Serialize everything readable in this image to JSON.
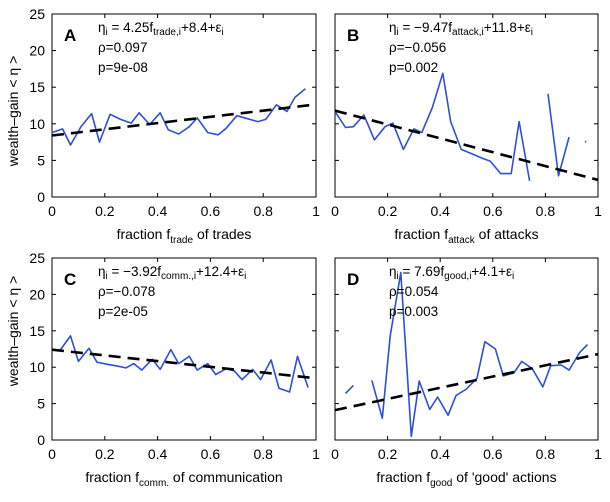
{
  "figure": {
    "ylabel": "wealth–gain < η >"
  },
  "colors": {
    "series": "#2f4fd8",
    "fit": "#000000"
  },
  "chart_data": [
    {
      "type": "line",
      "letter": "A",
      "xlabel": {
        "pre": "fraction f",
        "sub": "trade",
        "post": " of trades"
      },
      "formula": {
        "lhs": "η",
        "lhs_sub": "i",
        "mid": " = 4.25f",
        "mid_sub": "trade,i",
        "rest": "+8.4+ε",
        "rest_sub": "i"
      },
      "rho": "ρ=0.097",
      "p": "p=9e-08",
      "xlim": [
        0,
        1
      ],
      "ylim": [
        0,
        25
      ],
      "xticks": [
        "0",
        "0.2",
        "0.4",
        "0.6",
        "0.8",
        "1"
      ],
      "yticks": [
        "0",
        "5",
        "10",
        "15",
        "20",
        "25"
      ],
      "fit": {
        "slope": 4.25,
        "intercept": 8.4
      },
      "series": [
        [
          [
            0.0,
            8.8
          ],
          [
            0.04,
            9.3
          ],
          [
            0.07,
            7.1
          ],
          [
            0.11,
            9.6
          ],
          [
            0.15,
            11.4
          ],
          [
            0.18,
            7.5
          ],
          [
            0.22,
            11.3
          ],
          [
            0.26,
            10.6
          ],
          [
            0.3,
            10.1
          ],
          [
            0.33,
            11.5
          ],
          [
            0.37,
            9.9
          ],
          [
            0.41,
            11.5
          ],
          [
            0.44,
            9.2
          ],
          [
            0.48,
            8.6
          ],
          [
            0.52,
            9.6
          ],
          [
            0.55,
            10.8
          ],
          [
            0.59,
            8.8
          ],
          [
            0.63,
            8.5
          ],
          [
            0.66,
            9.4
          ],
          [
            0.7,
            11.1
          ],
          [
            0.74,
            10.7
          ],
          [
            0.78,
            10.3
          ],
          [
            0.81,
            10.6
          ],
          [
            0.85,
            12.6
          ],
          [
            0.89,
            11.7
          ],
          [
            0.92,
            13.6
          ],
          [
            0.96,
            14.8
          ]
        ]
      ]
    },
    {
      "type": "line",
      "letter": "B",
      "xlabel": {
        "pre": "fraction f",
        "sub": "attack",
        "post": " of attacks"
      },
      "formula": {
        "lhs": "η",
        "lhs_sub": "i",
        "mid": " = −9.47f",
        "mid_sub": "attack,i",
        "rest": "+11.8+ε",
        "rest_sub": "i"
      },
      "rho": "ρ=−0.056",
      "p": "p=0.002",
      "xlim": [
        0,
        1
      ],
      "ylim": [
        0,
        25
      ],
      "xticks": [
        "0",
        "0.2",
        "0.4",
        "0.6",
        "0.8",
        "1"
      ],
      "yticks": [],
      "fit": {
        "slope": -9.47,
        "intercept": 11.8
      },
      "series": [
        [
          [
            0.0,
            11.7
          ],
          [
            0.04,
            9.5
          ],
          [
            0.07,
            9.6
          ],
          [
            0.11,
            11.2
          ],
          [
            0.15,
            7.8
          ],
          [
            0.19,
            9.6
          ],
          [
            0.22,
            10.1
          ],
          [
            0.26,
            6.5
          ],
          [
            0.3,
            9.3
          ],
          [
            0.33,
            8.8
          ],
          [
            0.37,
            12.2
          ],
          [
            0.41,
            16.9
          ],
          [
            0.44,
            10.3
          ],
          [
            0.48,
            6.5
          ],
          [
            0.52,
            5.9
          ],
          [
            0.56,
            5.3
          ],
          [
            0.59,
            4.9
          ],
          [
            0.63,
            3.2
          ],
          [
            0.67,
            3.2
          ],
          [
            0.7,
            10.3
          ],
          [
            0.74,
            2.2
          ]
        ],
        [
          [
            0.81,
            14.1
          ],
          [
            0.85,
            2.9
          ],
          [
            0.89,
            8.2
          ]
        ],
        [
          [
            0.95,
            7.6
          ],
          [
            0.955,
            7.5
          ]
        ]
      ]
    },
    {
      "type": "line",
      "letter": "C",
      "xlabel": {
        "pre": "fraction f",
        "sub": "comm.",
        "post": " of communication"
      },
      "formula": {
        "lhs": "η",
        "lhs_sub": "i",
        "mid": " = −3.92f",
        "mid_sub": "comm.,i",
        "rest": "+12.4+ε",
        "rest_sub": "i"
      },
      "rho": "ρ=−0.078",
      "p": "p=2e-05",
      "xlim": [
        0,
        1
      ],
      "ylim": [
        0,
        25
      ],
      "xticks": [
        "0",
        "0.2",
        "0.4",
        "0.6",
        "0.8",
        "1"
      ],
      "yticks": [
        "0",
        "5",
        "10",
        "15",
        "20",
        "25"
      ],
      "fit": {
        "slope": -3.92,
        "intercept": 12.4
      },
      "series": [
        [
          [
            0.0,
            12.5
          ],
          [
            0.03,
            12.3
          ],
          [
            0.07,
            14.3
          ],
          [
            0.1,
            10.8
          ],
          [
            0.14,
            12.6
          ],
          [
            0.17,
            10.7
          ],
          [
            0.21,
            10.4
          ],
          [
            0.24,
            10.2
          ],
          [
            0.28,
            9.9
          ],
          [
            0.31,
            10.5
          ],
          [
            0.34,
            9.6
          ],
          [
            0.38,
            11.1
          ],
          [
            0.41,
            9.7
          ],
          [
            0.45,
            12.4
          ],
          [
            0.48,
            10.5
          ],
          [
            0.52,
            11.5
          ],
          [
            0.55,
            9.6
          ],
          [
            0.59,
            10.5
          ],
          [
            0.62,
            9.0
          ],
          [
            0.66,
            9.8
          ],
          [
            0.69,
            9.5
          ],
          [
            0.72,
            8.3
          ],
          [
            0.76,
            9.7
          ],
          [
            0.79,
            8.3
          ],
          [
            0.83,
            11.0
          ],
          [
            0.86,
            7.1
          ],
          [
            0.9,
            6.6
          ],
          [
            0.93,
            11.5
          ],
          [
            0.97,
            7.2
          ]
        ]
      ]
    },
    {
      "type": "line",
      "letter": "D",
      "xlabel": {
        "pre": "fraction f",
        "sub": "good",
        "post": " of 'good' actions"
      },
      "formula": {
        "lhs": "η",
        "lhs_sub": "i",
        "mid": " = 7.69f",
        "mid_sub": "good,i",
        "rest": "+4.1+ε",
        "rest_sub": "i"
      },
      "rho": "ρ=0.054",
      "p": "p=0.003",
      "xlim": [
        0,
        1
      ],
      "ylim": [
        0,
        25
      ],
      "xticks": [
        "0",
        "0.2",
        "0.4",
        "0.6",
        "0.8",
        "1"
      ],
      "yticks": [],
      "fit": {
        "slope": 7.69,
        "intercept": 4.1
      },
      "series": [
        [
          [
            0.04,
            6.4
          ],
          [
            0.07,
            7.5
          ]
        ],
        [
          [
            0.14,
            8.2
          ],
          [
            0.18,
            3.0
          ],
          [
            0.21,
            14.3
          ],
          [
            0.25,
            23.0
          ],
          [
            0.29,
            0.5
          ],
          [
            0.32,
            8.1
          ],
          [
            0.36,
            4.2
          ],
          [
            0.39,
            5.9
          ],
          [
            0.43,
            3.4
          ],
          [
            0.46,
            6.1
          ],
          [
            0.5,
            7.0
          ],
          [
            0.54,
            8.5
          ],
          [
            0.57,
            13.5
          ],
          [
            0.61,
            12.5
          ],
          [
            0.64,
            8.8
          ],
          [
            0.68,
            9.2
          ],
          [
            0.71,
            10.8
          ],
          [
            0.75,
            9.8
          ],
          [
            0.79,
            7.3
          ],
          [
            0.82,
            10.2
          ],
          [
            0.86,
            10.3
          ],
          [
            0.89,
            9.6
          ],
          [
            0.93,
            12.0
          ],
          [
            0.96,
            13.1
          ]
        ]
      ]
    }
  ]
}
